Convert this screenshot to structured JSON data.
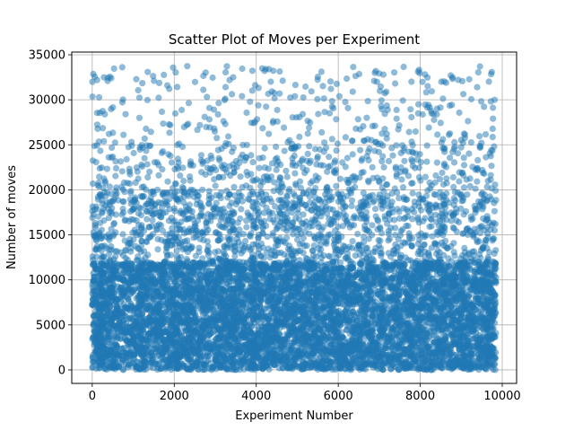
{
  "chart_data": {
    "type": "scatter",
    "title": "Scatter Plot of Moves per Experiment",
    "xlabel": "Experiment Number",
    "ylabel": "Number of moves",
    "xlim": [
      -500,
      10350
    ],
    "ylim": [
      -1500,
      35300
    ],
    "x_ticks": [
      0,
      2000,
      4000,
      6000,
      8000,
      10000
    ],
    "y_ticks": [
      0,
      5000,
      10000,
      15000,
      20000,
      25000,
      30000,
      35000
    ],
    "x_tick_labels": [
      "0",
      "2000",
      "4000",
      "6000",
      "8000",
      "10000"
    ],
    "y_tick_labels": [
      "0",
      "5000",
      "10000",
      "15000",
      "20000",
      "25000",
      "30000",
      "35000"
    ],
    "grid": true,
    "marker_color": "#1f77b4",
    "marker_alpha": 0.5,
    "n_points": 10000,
    "x_range": [
      0,
      9850
    ],
    "y_range": [
      0,
      33800
    ],
    "density_profile": [
      {
        "y_from": 0,
        "y_to": 12000,
        "share": 0.8
      },
      {
        "y_from": 12000,
        "y_to": 20000,
        "share": 0.13
      },
      {
        "y_from": 20000,
        "y_to": 25000,
        "share": 0.04
      },
      {
        "y_from": 25000,
        "y_to": 33800,
        "share": 0.03
      }
    ]
  }
}
